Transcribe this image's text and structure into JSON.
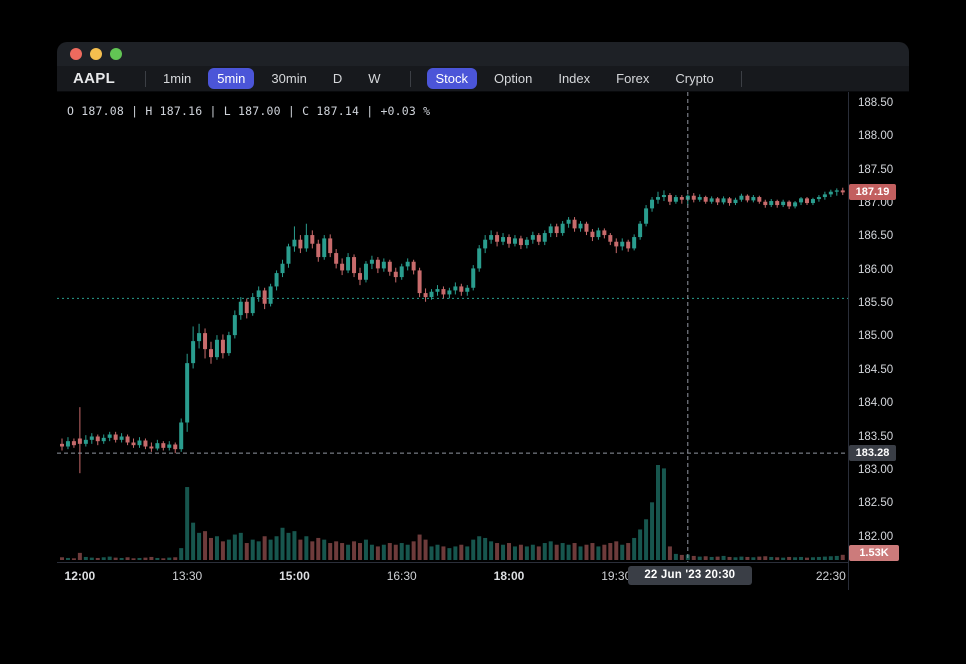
{
  "window": {
    "controls": {
      "close": "close",
      "minimize": "minimize",
      "zoom": "zoom"
    }
  },
  "toolbar": {
    "ticker": "AAPL",
    "timeframes": [
      {
        "label": "1min",
        "active": false
      },
      {
        "label": "5min",
        "active": true
      },
      {
        "label": "30min",
        "active": false
      },
      {
        "label": "D",
        "active": false
      },
      {
        "label": "W",
        "active": false
      }
    ],
    "markets": [
      {
        "label": "Stock",
        "active": true
      },
      {
        "label": "Option",
        "active": false
      },
      {
        "label": "Index",
        "active": false
      },
      {
        "label": "Forex",
        "active": false
      },
      {
        "label": "Crypto",
        "active": false
      }
    ]
  },
  "ohlc_info": {
    "open": "187.08",
    "high": "187.16",
    "low": "187.00",
    "close": "187.14",
    "change": "+0.03 %",
    "text": "O 187.08 | H 187.16 | L 187.00 | C 187.14 | +0.03 %"
  },
  "colors": {
    "up": "#2a9d8e",
    "down": "#c86b6c",
    "up_vol": "rgba(42,157,142,0.55)",
    "down_vol": "rgba(200,107,108,0.55)",
    "accent_pill": "#4b55d8",
    "badge_red": "#c25f5f",
    "badge_gray": "#3a3e46",
    "badge_vol": "#cc7b7b",
    "crosshair": "#9196a1",
    "ref_line": "#2a9d8e",
    "axis_border": "#2a2e39",
    "label": "#d5d8dd",
    "traffic_red": "#ee6a5e",
    "traffic_yellow": "#f5bf4f",
    "traffic_green": "#62c554"
  },
  "chart_data": {
    "type": "candlestick_with_volume",
    "symbol": "AAPL",
    "interval": "5min",
    "title": "AAPL 5min candlestick chart",
    "price_axis": {
      "ticks": [
        "188.50",
        "188.00",
        "187.50",
        "187.00",
        "186.50",
        "186.00",
        "185.50",
        "185.00",
        "184.50",
        "184.00",
        "183.50",
        "183.00",
        "182.50",
        "182.00"
      ],
      "range": [
        181.8,
        188.7
      ]
    },
    "time_axis": {
      "ticks": [
        {
          "label": "12:00",
          "index": 3,
          "bold": true
        },
        {
          "label": "13:30",
          "index": 21,
          "bold": false
        },
        {
          "label": "15:00",
          "index": 39,
          "bold": true
        },
        {
          "label": "16:30",
          "index": 57,
          "bold": false
        },
        {
          "label": "18:00",
          "index": 75,
          "bold": true
        },
        {
          "label": "19:30",
          "index": 93,
          "bold": false
        },
        {
          "label": "22:30",
          "index": 129,
          "bold": false
        }
      ]
    },
    "reference_line_price": 185.6,
    "crosshair": {
      "price": 183.28,
      "price_label": "183.28",
      "candle_index": 105,
      "date_time_label": "22 Jun '23   20:30"
    },
    "last_price": 187.19,
    "last_price_label": "187.19",
    "last_volume_label": "1.53K",
    "volume_max_k": 28,
    "candles_format": [
      "time",
      "open",
      "high",
      "low",
      "close",
      "volume_k"
    ],
    "candles": [
      [
        "11:45",
        183.42,
        183.5,
        183.32,
        183.38,
        0.8
      ],
      [
        "11:50",
        183.38,
        183.52,
        183.34,
        183.46,
        0.6
      ],
      [
        "11:55",
        183.46,
        183.5,
        183.36,
        183.4,
        0.5
      ],
      [
        "12:00",
        183.5,
        183.97,
        182.98,
        183.42,
        2.1
      ],
      [
        "12:05",
        183.42,
        183.55,
        183.38,
        183.48,
        0.9
      ],
      [
        "12:10",
        183.48,
        183.58,
        183.42,
        183.53,
        0.7
      ],
      [
        "12:15",
        183.53,
        183.56,
        183.4,
        183.46,
        0.6
      ],
      [
        "12:20",
        183.46,
        183.56,
        183.42,
        183.51,
        0.8
      ],
      [
        "12:25",
        183.51,
        183.6,
        183.46,
        183.56,
        1.0
      ],
      [
        "12:30",
        183.56,
        183.6,
        183.44,
        183.48,
        0.7
      ],
      [
        "12:35",
        183.48,
        183.58,
        183.44,
        183.53,
        0.6
      ],
      [
        "12:40",
        183.53,
        183.56,
        183.4,
        183.44,
        0.8
      ],
      [
        "12:45",
        183.44,
        183.5,
        183.36,
        183.4,
        0.5
      ],
      [
        "12:50",
        183.4,
        183.52,
        183.36,
        183.47,
        0.6
      ],
      [
        "12:55",
        183.47,
        183.5,
        183.34,
        183.38,
        0.7
      ],
      [
        "13:00",
        183.38,
        183.44,
        183.3,
        183.35,
        0.9
      ],
      [
        "13:05",
        183.35,
        183.48,
        183.32,
        183.43,
        0.6
      ],
      [
        "13:10",
        183.43,
        183.46,
        183.32,
        183.36,
        0.5
      ],
      [
        "13:15",
        183.36,
        183.46,
        183.32,
        183.41,
        0.7
      ],
      [
        "13:20",
        183.41,
        183.44,
        183.28,
        183.34,
        0.8
      ],
      [
        "13:25",
        183.34,
        183.8,
        183.3,
        183.74,
        3.5
      ],
      [
        "13:30",
        183.74,
        184.77,
        183.6,
        184.63,
        21.5
      ],
      [
        "13:35",
        184.63,
        185.18,
        184.55,
        184.96,
        11.0
      ],
      [
        "13:40",
        184.96,
        185.22,
        184.85,
        185.08,
        8.0
      ],
      [
        "13:45",
        185.08,
        185.15,
        184.7,
        184.84,
        8.5
      ],
      [
        "13:50",
        184.84,
        184.95,
        184.62,
        184.72,
        6.5
      ],
      [
        "13:55",
        184.72,
        185.05,
        184.68,
        184.98,
        7.0
      ],
      [
        "14:00",
        184.98,
        185.06,
        184.7,
        184.78,
        5.5
      ],
      [
        "14:05",
        184.78,
        185.1,
        184.74,
        185.05,
        6.0
      ],
      [
        "14:10",
        185.05,
        185.42,
        185.0,
        185.35,
        7.5
      ],
      [
        "14:15",
        185.35,
        185.62,
        185.28,
        185.55,
        8.0
      ],
      [
        "14:20",
        185.55,
        185.6,
        185.3,
        185.38,
        5.0
      ],
      [
        "14:25",
        185.38,
        185.68,
        185.34,
        185.62,
        6.0
      ],
      [
        "14:30",
        185.62,
        185.78,
        185.55,
        185.72,
        5.5
      ],
      [
        "14:35",
        185.72,
        185.76,
        185.44,
        185.52,
        7.0
      ],
      [
        "14:40",
        185.52,
        185.82,
        185.48,
        185.78,
        6.0
      ],
      [
        "14:45",
        185.78,
        186.02,
        185.72,
        185.98,
        7.0
      ],
      [
        "14:50",
        185.98,
        186.18,
        185.92,
        186.12,
        9.5
      ],
      [
        "14:55",
        186.12,
        186.42,
        186.06,
        186.38,
        8.0
      ],
      [
        "15:00",
        186.38,
        186.68,
        186.3,
        186.48,
        8.5
      ],
      [
        "15:05",
        186.48,
        186.55,
        186.28,
        186.35,
        6.0
      ],
      [
        "15:10",
        186.35,
        186.72,
        186.3,
        186.55,
        7.0
      ],
      [
        "15:15",
        186.55,
        186.62,
        186.35,
        186.42,
        5.5
      ],
      [
        "15:20",
        186.42,
        186.48,
        186.15,
        186.22,
        6.5
      ],
      [
        "15:25",
        186.22,
        186.55,
        186.18,
        186.5,
        6.0
      ],
      [
        "15:30",
        186.5,
        186.56,
        186.22,
        186.28,
        5.0
      ],
      [
        "15:35",
        186.28,
        186.34,
        186.05,
        186.12,
        5.5
      ],
      [
        "15:40",
        186.12,
        186.2,
        185.95,
        186.02,
        5.0
      ],
      [
        "15:45",
        186.02,
        186.28,
        185.98,
        186.22,
        4.5
      ],
      [
        "15:50",
        186.22,
        186.26,
        185.92,
        185.98,
        5.5
      ],
      [
        "15:55",
        185.98,
        186.06,
        185.8,
        185.88,
        5.0
      ],
      [
        "16:00",
        185.88,
        186.16,
        185.84,
        186.12,
        6.0
      ],
      [
        "16:05",
        186.12,
        186.24,
        186.04,
        186.18,
        4.5
      ],
      [
        "16:10",
        186.18,
        186.22,
        185.98,
        186.05,
        4.0
      ],
      [
        "16:15",
        186.05,
        186.2,
        186.0,
        186.15,
        4.5
      ],
      [
        "16:20",
        186.15,
        186.18,
        185.94,
        186.0,
        5.0
      ],
      [
        "16:25",
        186.0,
        186.06,
        185.84,
        185.92,
        4.5
      ],
      [
        "16:30",
        185.92,
        186.12,
        185.88,
        186.08,
        5.0
      ],
      [
        "16:35",
        186.08,
        186.2,
        186.02,
        186.15,
        4.5
      ],
      [
        "16:40",
        186.15,
        186.18,
        185.96,
        186.02,
        5.5
      ],
      [
        "16:45",
        186.02,
        186.06,
        185.62,
        185.68,
        7.5
      ],
      [
        "16:50",
        185.68,
        185.75,
        185.55,
        185.62,
        6.0
      ],
      [
        "16:55",
        185.62,
        185.74,
        185.58,
        185.7,
        4.0
      ],
      [
        "17:00",
        185.7,
        185.8,
        185.64,
        185.74,
        4.5
      ],
      [
        "17:05",
        185.74,
        185.78,
        185.6,
        185.66,
        4.0
      ],
      [
        "17:10",
        185.66,
        185.76,
        185.6,
        185.72,
        3.5
      ],
      [
        "17:15",
        185.72,
        185.84,
        185.66,
        185.78,
        4.0
      ],
      [
        "17:20",
        185.78,
        185.82,
        185.64,
        185.7,
        4.5
      ],
      [
        "17:25",
        185.7,
        185.8,
        185.64,
        185.76,
        4.0
      ],
      [
        "17:30",
        185.76,
        186.1,
        185.72,
        186.05,
        6.0
      ],
      [
        "17:35",
        186.05,
        186.4,
        186.0,
        186.35,
        7.0
      ],
      [
        "17:40",
        186.35,
        186.55,
        186.28,
        186.48,
        6.5
      ],
      [
        "17:45",
        186.48,
        186.62,
        186.42,
        186.55,
        5.5
      ],
      [
        "17:50",
        186.55,
        186.6,
        186.38,
        186.45,
        5.0
      ],
      [
        "17:55",
        186.45,
        186.58,
        186.4,
        186.52,
        4.5
      ],
      [
        "18:00",
        186.52,
        186.56,
        186.36,
        186.42,
        5.0
      ],
      [
        "18:05",
        186.42,
        186.55,
        186.38,
        186.5,
        4.0
      ],
      [
        "18:10",
        186.5,
        186.54,
        186.34,
        186.4,
        4.5
      ],
      [
        "18:15",
        186.4,
        186.52,
        186.35,
        186.48,
        4.0
      ],
      [
        "18:20",
        186.48,
        186.6,
        186.42,
        186.55,
        4.5
      ],
      [
        "18:25",
        186.55,
        186.58,
        186.4,
        186.45,
        4.0
      ],
      [
        "18:30",
        186.45,
        186.62,
        186.4,
        186.58,
        5.0
      ],
      [
        "18:35",
        186.58,
        186.72,
        186.52,
        186.68,
        5.5
      ],
      [
        "18:40",
        186.68,
        186.72,
        186.52,
        186.58,
        4.5
      ],
      [
        "18:45",
        186.58,
        186.76,
        186.54,
        186.72,
        5.0
      ],
      [
        "18:50",
        186.72,
        186.82,
        186.66,
        186.78,
        4.5
      ],
      [
        "18:55",
        186.78,
        186.82,
        186.6,
        186.65,
        5.0
      ],
      [
        "19:00",
        186.65,
        186.76,
        186.6,
        186.72,
        4.0
      ],
      [
        "19:05",
        186.72,
        186.75,
        186.55,
        186.6,
        4.5
      ],
      [
        "19:10",
        186.6,
        186.64,
        186.46,
        186.52,
        5.0
      ],
      [
        "19:15",
        186.52,
        186.66,
        186.48,
        186.62,
        4.0
      ],
      [
        "19:20",
        186.62,
        186.65,
        186.5,
        186.55,
        4.5
      ],
      [
        "19:25",
        186.55,
        186.58,
        186.4,
        186.45,
        5.0
      ],
      [
        "19:30",
        186.45,
        186.5,
        186.28,
        186.38,
        5.5
      ],
      [
        "19:35",
        186.38,
        186.5,
        186.32,
        186.45,
        4.5
      ],
      [
        "19:40",
        186.45,
        186.48,
        186.3,
        186.35,
        5.0
      ],
      [
        "19:45",
        186.35,
        186.56,
        186.32,
        186.52,
        6.5
      ],
      [
        "19:50",
        186.52,
        186.76,
        186.48,
        186.72,
        9.0
      ],
      [
        "19:55",
        186.72,
        187.0,
        186.68,
        186.95,
        12.0
      ],
      [
        "20:00",
        186.95,
        187.12,
        186.9,
        187.08,
        17.0
      ],
      [
        "20:05",
        187.08,
        187.2,
        187.02,
        187.12,
        28.0
      ],
      [
        "20:10",
        187.12,
        187.22,
        187.06,
        187.15,
        27.0
      ],
      [
        "20:15",
        187.15,
        187.18,
        187.0,
        187.05,
        4.0
      ],
      [
        "20:20",
        187.05,
        187.15,
        187.02,
        187.12,
        1.8
      ],
      [
        "20:25",
        187.12,
        187.15,
        187.02,
        187.08,
        1.5
      ],
      [
        "20:30",
        187.08,
        187.16,
        187.0,
        187.14,
        1.6
      ],
      [
        "20:35",
        187.14,
        187.18,
        187.04,
        187.08,
        1.2
      ],
      [
        "20:40",
        187.08,
        187.16,
        187.05,
        187.12,
        1.0
      ],
      [
        "20:45",
        187.12,
        187.14,
        187.02,
        187.05,
        1.1
      ],
      [
        "20:50",
        187.05,
        187.13,
        187.02,
        187.1,
        0.9
      ],
      [
        "20:55",
        187.1,
        187.12,
        187.0,
        187.04,
        1.0
      ],
      [
        "21:00",
        187.04,
        187.13,
        187.01,
        187.1,
        1.2
      ],
      [
        "21:05",
        187.1,
        187.12,
        186.99,
        187.03,
        0.9
      ],
      [
        "21:10",
        187.03,
        187.11,
        187.0,
        187.08,
        0.8
      ],
      [
        "21:15",
        187.08,
        187.17,
        187.05,
        187.14,
        1.0
      ],
      [
        "21:20",
        187.14,
        187.16,
        187.04,
        187.07,
        0.9
      ],
      [
        "21:25",
        187.07,
        187.15,
        187.04,
        187.12,
        0.8
      ],
      [
        "21:30",
        187.12,
        187.14,
        187.02,
        187.05,
        1.0
      ],
      [
        "21:35",
        187.05,
        187.08,
        186.96,
        187.0,
        1.1
      ],
      [
        "21:40",
        187.0,
        187.09,
        186.97,
        187.06,
        0.9
      ],
      [
        "21:45",
        187.06,
        187.08,
        186.96,
        187.0,
        0.8
      ],
      [
        "21:50",
        187.0,
        187.08,
        186.97,
        187.05,
        0.7
      ],
      [
        "21:55",
        187.05,
        187.07,
        186.94,
        186.98,
        0.9
      ],
      [
        "22:00",
        186.98,
        187.06,
        186.95,
        187.04,
        0.8
      ],
      [
        "22:05",
        187.04,
        187.12,
        187.0,
        187.1,
        0.9
      ],
      [
        "22:10",
        187.1,
        187.12,
        187.0,
        187.03,
        0.7
      ],
      [
        "22:15",
        187.03,
        187.11,
        187.0,
        187.09,
        0.8
      ],
      [
        "22:20",
        187.09,
        187.15,
        187.05,
        187.12,
        0.9
      ],
      [
        "22:25",
        187.12,
        187.2,
        187.08,
        187.16,
        1.0
      ],
      [
        "22:30",
        187.16,
        187.23,
        187.12,
        187.2,
        1.1
      ],
      [
        "22:35",
        187.2,
        187.25,
        187.14,
        187.22,
        1.2
      ],
      [
        "22:40",
        187.22,
        187.26,
        187.15,
        187.19,
        1.53
      ]
    ]
  }
}
